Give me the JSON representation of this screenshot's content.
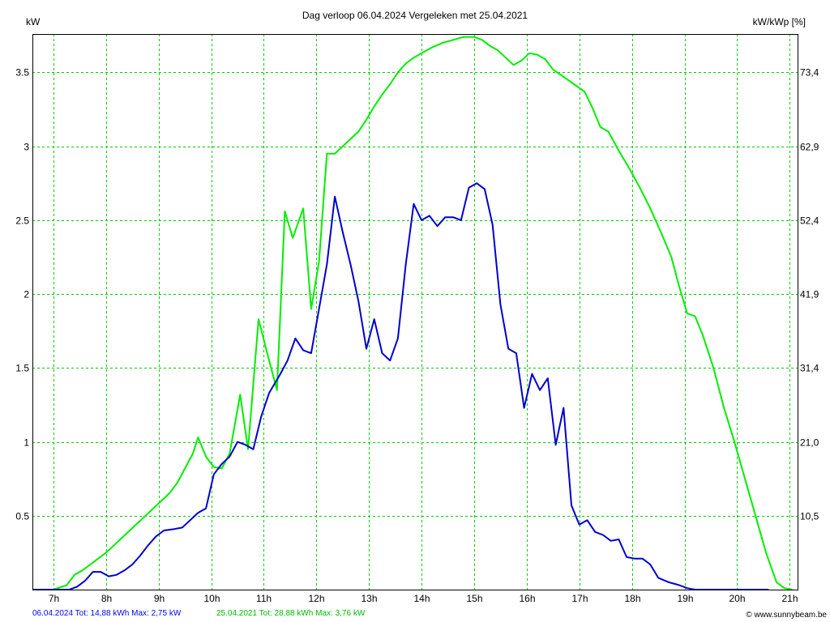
{
  "header": {
    "title": "Dag  verloop 06.04.2024   Vergeleken met 25.04.2021",
    "left_unit": "kW",
    "right_unit": "kW/kWp [%]"
  },
  "footer": {
    "blue_summary": "06.04.2024 Tot: 14,88 kWh Max: 2,75 kW",
    "green_summary": "25.04.2021 Tot: 28,88 kWh Max: 3,76 kW",
    "credit": "© www.sunnybeam.be"
  },
  "colors": {
    "background": "#ffffff",
    "grid": "#00cc00",
    "series_blue": "#0000cc",
    "series_green": "#00ee00",
    "axis": "#000000"
  },
  "chart_data": {
    "type": "line",
    "grid": true,
    "xlim": [
      6.6,
      21.15
    ],
    "ylim": [
      0,
      3.76
    ],
    "x_ticks": [
      7,
      8,
      9,
      10,
      11,
      12,
      13,
      14,
      15,
      16,
      17,
      18,
      19,
      20,
      21
    ],
    "x_tick_labels": [
      "7h",
      "8h",
      "9h",
      "10h",
      "11h",
      "12h",
      "13h",
      "14h",
      "15h",
      "16h",
      "17h",
      "18h",
      "19h",
      "20h",
      "21h"
    ],
    "y_ticks": [
      0.5,
      1,
      1.5,
      2,
      2.5,
      3,
      3.5
    ],
    "y_tick_labels": [
      "0.5",
      "1",
      "1.5",
      "2",
      "2.5",
      "3",
      "3.5"
    ],
    "y2_ticks": [
      0.5,
      1,
      1.5,
      2,
      2.5,
      3,
      3.5
    ],
    "y2_tick_labels": [
      "10,5",
      "21,0",
      "31,4",
      "41,9",
      "52,4",
      "62,9",
      "73,4"
    ],
    "series": [
      {
        "name": "25.04.2021",
        "color": "#00ee00",
        "x": [
          6.6,
          7.0,
          7.25,
          7.4,
          7.55,
          7.7,
          7.85,
          8.0,
          8.15,
          8.3,
          8.45,
          8.6,
          8.75,
          8.9,
          9.05,
          9.2,
          9.35,
          9.5,
          9.65,
          9.75,
          9.9,
          10.05,
          10.2,
          10.35,
          10.55,
          10.7,
          10.9,
          11.05,
          11.25,
          11.4,
          11.55,
          11.75,
          11.9,
          12.05,
          12.2,
          12.35,
          12.5,
          12.65,
          12.8,
          12.95,
          13.1,
          13.25,
          13.4,
          13.55,
          13.7,
          13.85,
          14.0,
          14.2,
          14.4,
          14.6,
          14.8,
          15.0,
          15.15,
          15.3,
          15.45,
          15.6,
          15.75,
          15.9,
          16.05,
          16.2,
          16.35,
          16.5,
          16.7,
          16.9,
          17.1,
          17.25,
          17.4,
          17.55,
          17.75,
          17.95,
          18.15,
          18.35,
          18.55,
          18.75,
          18.9,
          19.05,
          19.2,
          19.35,
          19.55,
          19.75,
          19.95,
          20.15,
          20.35,
          20.55,
          20.75,
          20.9,
          21.05
        ],
        "values": [
          0.0,
          0.0,
          0.03,
          0.1,
          0.13,
          0.17,
          0.21,
          0.25,
          0.3,
          0.35,
          0.4,
          0.45,
          0.5,
          0.55,
          0.6,
          0.65,
          0.72,
          0.82,
          0.92,
          1.03,
          0.9,
          0.83,
          0.82,
          0.92,
          1.32,
          0.95,
          1.83,
          1.62,
          1.35,
          2.56,
          2.38,
          2.58,
          1.9,
          2.22,
          2.95,
          2.95,
          3.0,
          3.05,
          3.1,
          3.18,
          3.27,
          3.35,
          3.42,
          3.5,
          3.56,
          3.6,
          3.63,
          3.67,
          3.7,
          3.72,
          3.74,
          3.74,
          3.72,
          3.68,
          3.65,
          3.6,
          3.55,
          3.58,
          3.63,
          3.62,
          3.59,
          3.52,
          3.47,
          3.42,
          3.37,
          3.26,
          3.13,
          3.1,
          2.97,
          2.85,
          2.72,
          2.58,
          2.42,
          2.25,
          2.05,
          1.87,
          1.85,
          1.72,
          1.5,
          1.23,
          1.0,
          0.75,
          0.5,
          0.25,
          0.05,
          0.01,
          0.0
        ]
      },
      {
        "name": "06.04.2024",
        "color": "#0000cc",
        "x": [
          6.6,
          7.3,
          7.45,
          7.6,
          7.75,
          7.9,
          8.05,
          8.2,
          8.35,
          8.5,
          8.65,
          8.8,
          8.95,
          9.1,
          9.3,
          9.45,
          9.6,
          9.75,
          9.9,
          10.05,
          10.2,
          10.35,
          10.5,
          10.65,
          10.8,
          10.95,
          11.1,
          11.3,
          11.45,
          11.6,
          11.75,
          11.9,
          12.05,
          12.2,
          12.35,
          12.5,
          12.65,
          12.8,
          12.95,
          13.1,
          13.25,
          13.4,
          13.55,
          13.7,
          13.85,
          14.0,
          14.15,
          14.3,
          14.45,
          14.6,
          14.75,
          14.9,
          15.05,
          15.2,
          15.35,
          15.5,
          15.65,
          15.8,
          15.95,
          16.1,
          16.25,
          16.4,
          16.55,
          16.7,
          16.85,
          17.0,
          17.15,
          17.3,
          17.45,
          17.6,
          17.75,
          17.9,
          18.05,
          18.2,
          18.35,
          18.5,
          18.7,
          18.9,
          19.05,
          19.2,
          19.4,
          19.6,
          19.85,
          20.1,
          20.35,
          20.6
        ],
        "values": [
          0.0,
          0.0,
          0.02,
          0.06,
          0.12,
          0.12,
          0.09,
          0.1,
          0.13,
          0.17,
          0.23,
          0.3,
          0.36,
          0.4,
          0.41,
          0.42,
          0.47,
          0.52,
          0.55,
          0.78,
          0.85,
          0.9,
          1.0,
          0.98,
          0.95,
          1.17,
          1.33,
          1.45,
          1.55,
          1.7,
          1.62,
          1.6,
          1.9,
          2.2,
          2.66,
          2.42,
          2.2,
          1.95,
          1.63,
          1.83,
          1.6,
          1.55,
          1.7,
          2.2,
          2.61,
          2.5,
          2.53,
          2.46,
          2.52,
          2.52,
          2.5,
          2.72,
          2.75,
          2.71,
          2.47,
          1.93,
          1.63,
          1.6,
          1.23,
          1.46,
          1.35,
          1.43,
          0.98,
          1.23,
          0.57,
          0.44,
          0.47,
          0.39,
          0.37,
          0.33,
          0.34,
          0.22,
          0.21,
          0.21,
          0.17,
          0.08,
          0.05,
          0.03,
          0.01,
          0.0,
          0.0,
          0.0,
          0.0,
          0.0,
          0.0,
          0.0
        ]
      }
    ]
  }
}
